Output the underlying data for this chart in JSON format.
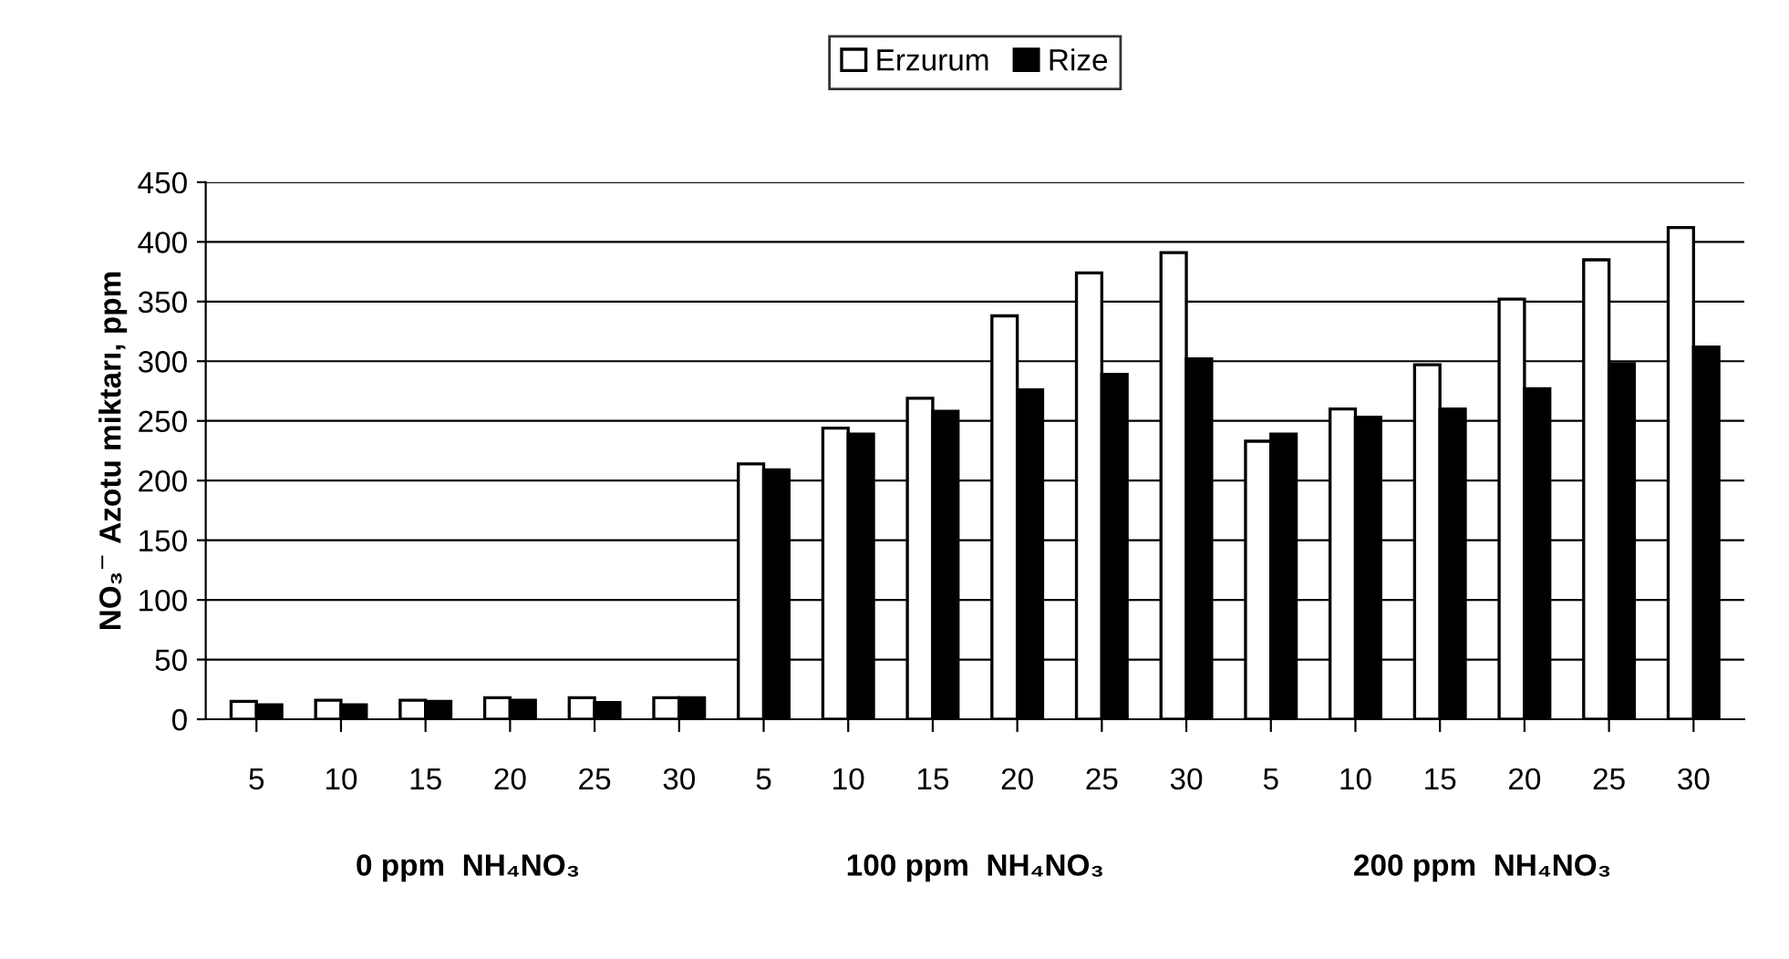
{
  "chart_data": {
    "type": "bar",
    "ylabel": "NO₃$^{−}$ Azotu miktarı, ppm",
    "categories": [
      "5",
      "10",
      "15",
      "20",
      "25",
      "30",
      "5",
      "10",
      "15",
      "20",
      "25",
      "30",
      "5",
      "10",
      "15",
      "20",
      "25",
      "30"
    ],
    "series": [
      {
        "name": "Erzurum",
        "color": "#ffffff",
        "values": [
          15,
          16,
          16,
          18,
          18,
          18,
          214,
          244,
          269,
          338,
          374,
          391,
          233,
          260,
          297,
          352,
          385,
          412
        ]
      },
      {
        "name": "Rize",
        "color": "#000000",
        "values": [
          12,
          12,
          15,
          16,
          14,
          18,
          209,
          239,
          258,
          276,
          289,
          302,
          239,
          253,
          260,
          277,
          298,
          312
        ]
      }
    ],
    "annotations": [
      "0 ppm  NH₄NO₃",
      "100 ppm  NH₄NO₃",
      "200 ppm  NH₄NO₃"
    ],
    "ylim": [
      0,
      450
    ],
    "yticks": [
      0,
      50,
      100,
      150,
      200,
      250,
      300,
      350,
      400,
      450
    ],
    "grid": "y",
    "legend": "top"
  }
}
